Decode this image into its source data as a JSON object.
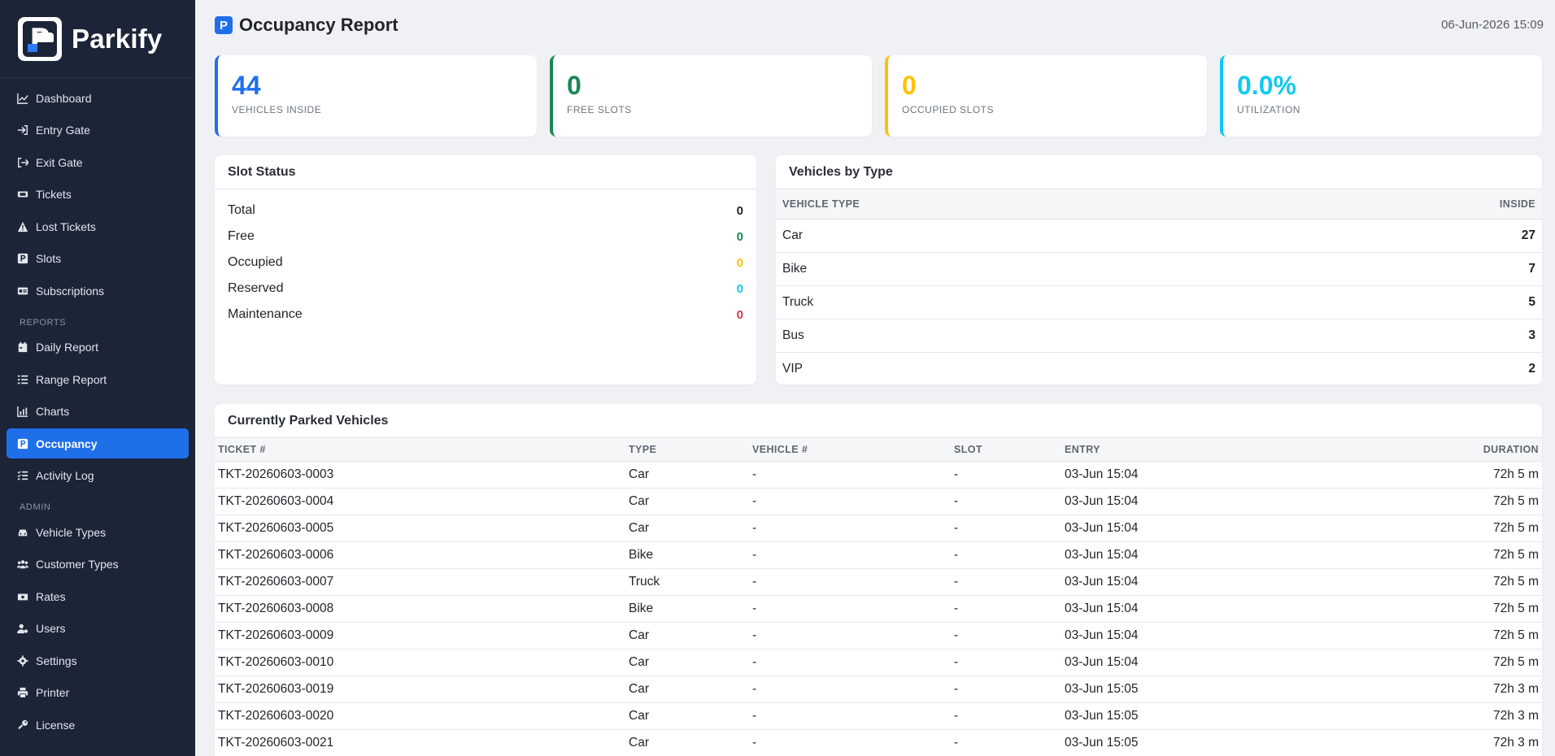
{
  "app": {
    "brand": "Parkify"
  },
  "sidebar": {
    "items_main": [
      {
        "label": "Dashboard",
        "icon": "chart-line-icon"
      },
      {
        "label": "Entry Gate",
        "icon": "sign-in-icon"
      },
      {
        "label": "Exit Gate",
        "icon": "sign-out-icon"
      },
      {
        "label": "Tickets",
        "icon": "ticket-icon"
      },
      {
        "label": "Lost Tickets",
        "icon": "warning-icon"
      },
      {
        "label": "Slots",
        "icon": "parking-icon"
      },
      {
        "label": "Subscriptions",
        "icon": "id-card-icon"
      }
    ],
    "section_reports": "REPORTS",
    "items_reports": [
      {
        "label": "Daily Report",
        "icon": "calendar-icon"
      },
      {
        "label": "Range Report",
        "icon": "list-icon"
      },
      {
        "label": "Charts",
        "icon": "chart-bar-icon"
      },
      {
        "label": "Occupancy",
        "icon": "parking-icon",
        "active": true
      },
      {
        "label": "Activity Log",
        "icon": "list-check-icon"
      }
    ],
    "section_admin": "ADMIN",
    "items_admin": [
      {
        "label": "Vehicle Types",
        "icon": "car-icon"
      },
      {
        "label": "Customer Types",
        "icon": "users-icon"
      },
      {
        "label": "Rates",
        "icon": "money-icon"
      },
      {
        "label": "Users",
        "icon": "user-gear-icon"
      },
      {
        "label": "Settings",
        "icon": "gear-icon"
      },
      {
        "label": "Printer",
        "icon": "printer-icon"
      },
      {
        "label": "License",
        "icon": "key-icon"
      }
    ]
  },
  "header": {
    "title": "Occupancy Report",
    "datetime": "06-Jun-2026 15:09"
  },
  "stats": [
    {
      "value": "44",
      "label": "VEHICLES INSIDE",
      "color": "#1f6feb"
    },
    {
      "value": "0",
      "label": "FREE SLOTS",
      "color": "#198754"
    },
    {
      "value": "0",
      "label": "OCCUPIED SLOTS",
      "color": "#ffc107"
    },
    {
      "value": "0.0%",
      "label": "UTILIZATION",
      "color": "#0dcaf0"
    }
  ],
  "slot_status": {
    "title": "Slot Status",
    "rows": [
      {
        "label": "Total",
        "value": "0",
        "color": "#212529"
      },
      {
        "label": "Free",
        "value": "0",
        "color": "#198754"
      },
      {
        "label": "Occupied",
        "value": "0",
        "color": "#ffc107"
      },
      {
        "label": "Reserved",
        "value": "0",
        "color": "#0dcaf0"
      },
      {
        "label": "Maintenance",
        "value": "0",
        "color": "#dc3545"
      }
    ]
  },
  "vehicles_by_type": {
    "title": "Vehicles by Type",
    "col_type": "VEHICLE TYPE",
    "col_inside": "INSIDE",
    "rows": [
      {
        "type": "Car",
        "inside": "27"
      },
      {
        "type": "Bike",
        "inside": "7"
      },
      {
        "type": "Truck",
        "inside": "5"
      },
      {
        "type": "Bus",
        "inside": "3"
      },
      {
        "type": "VIP",
        "inside": "2"
      }
    ]
  },
  "parked": {
    "title": "Currently Parked Vehicles",
    "columns": [
      "TICKET #",
      "TYPE",
      "VEHICLE #",
      "SLOT",
      "ENTRY",
      "DURATION"
    ],
    "rows": [
      [
        "TKT-20260603-0003",
        "Car",
        "-",
        "-",
        "03-Jun 15:04",
        "72h 5 m"
      ],
      [
        "TKT-20260603-0004",
        "Car",
        "-",
        "-",
        "03-Jun 15:04",
        "72h 5 m"
      ],
      [
        "TKT-20260603-0005",
        "Car",
        "-",
        "-",
        "03-Jun 15:04",
        "72h 5 m"
      ],
      [
        "TKT-20260603-0006",
        "Bike",
        "-",
        "-",
        "03-Jun 15:04",
        "72h 5 m"
      ],
      [
        "TKT-20260603-0007",
        "Truck",
        "-",
        "-",
        "03-Jun 15:04",
        "72h 5 m"
      ],
      [
        "TKT-20260603-0008",
        "Bike",
        "-",
        "-",
        "03-Jun 15:04",
        "72h 5 m"
      ],
      [
        "TKT-20260603-0009",
        "Car",
        "-",
        "-",
        "03-Jun 15:04",
        "72h 5 m"
      ],
      [
        "TKT-20260603-0010",
        "Car",
        "-",
        "-",
        "03-Jun 15:04",
        "72h 5 m"
      ],
      [
        "TKT-20260603-0019",
        "Car",
        "-",
        "-",
        "03-Jun 15:05",
        "72h 3 m"
      ],
      [
        "TKT-20260603-0020",
        "Car",
        "-",
        "-",
        "03-Jun 15:05",
        "72h 3 m"
      ],
      [
        "TKT-20260603-0021",
        "Car",
        "-",
        "-",
        "03-Jun 15:05",
        "72h 3 m"
      ]
    ]
  }
}
